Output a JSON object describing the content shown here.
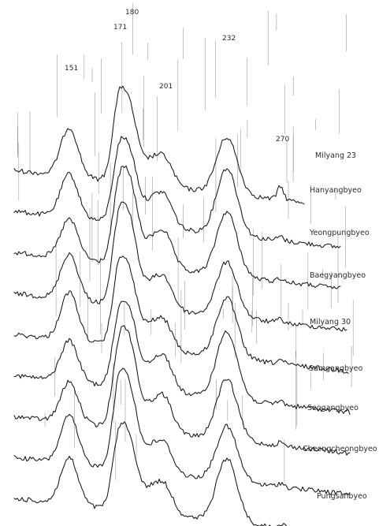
{
  "chart_data": {
    "type": "line",
    "title": "",
    "xlabel": "",
    "ylabel": "",
    "grid": false,
    "legend": "labels at right end of each trace",
    "peak_labels": [
      "151",
      "171",
      "180",
      "201",
      "232",
      "270"
    ],
    "peak_positions": [
      151,
      171,
      180,
      201,
      232,
      270
    ],
    "series": [
      {
        "name": "Milyang 23"
      },
      {
        "name": "Hanyangbyeo"
      },
      {
        "name": "Yeongpungbyeo"
      },
      {
        "name": "Baegyangbyeo"
      },
      {
        "name": "Milyang 30"
      },
      {
        "name": "Samgangbyeo"
      },
      {
        "name": "Seogangbyeo"
      },
      {
        "name": "Cheongcheongbyeo"
      },
      {
        "name": "Pungsanbyeo"
      }
    ],
    "colors": {
      "line": "#151515",
      "text": "#2a2a2a",
      "background": "#ffffff"
    }
  }
}
